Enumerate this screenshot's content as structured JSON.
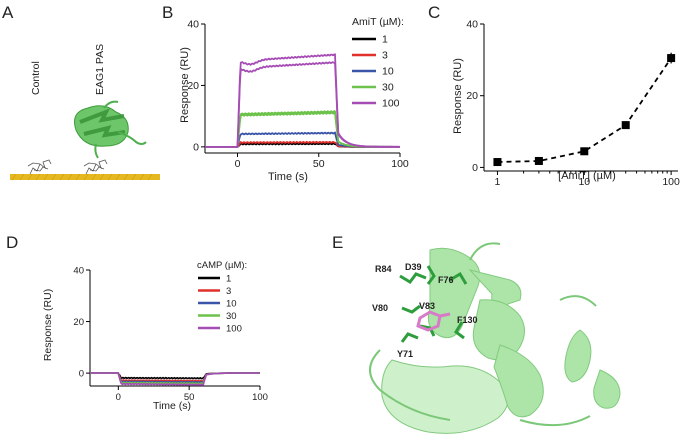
{
  "panels": {
    "A": {
      "letter": "A",
      "label_control": "Control",
      "label_protein": "EAG1 PAS"
    },
    "B": {
      "letter": "B"
    },
    "C": {
      "letter": "C"
    },
    "D": {
      "letter": "D"
    },
    "E": {
      "letter": "E",
      "residues": [
        "R84",
        "D39",
        "F76",
        "V80",
        "V83",
        "F130",
        "Y71"
      ]
    }
  },
  "colors": {
    "c1": "#000000",
    "c3": "#e0302c",
    "c10": "#3a55a8",
    "c30": "#6cc24a",
    "c100": "#a64db5",
    "gold": "#e6b820",
    "protein": "#8fd98a",
    "sidechain": "#2e9e3c",
    "ligand": "#d77ac8"
  },
  "chart_data": [
    {
      "id": "B",
      "type": "line",
      "xlabel": "Time (s)",
      "ylabel": "Response (RU)",
      "xlim": [
        -20,
        100
      ],
      "ylim": [
        -2,
        40
      ],
      "xticks": [
        0,
        50,
        100
      ],
      "yticks": [
        0,
        20,
        40
      ],
      "legend_title": "AmiT (µM):",
      "legend_position": "top-right",
      "series": [
        {
          "name": "1",
          "color": "#000000",
          "plateau": 1.0
        },
        {
          "name": "3",
          "color": "#e0302c",
          "plateau": 1.5
        },
        {
          "name": "10",
          "color": "#3a55a8",
          "plateau": 4.5
        },
        {
          "name": "30",
          "color": "#6cc24a",
          "plateau": 11.5
        },
        {
          "name": "30",
          "color": "#6cc24a",
          "plateau": 11.0
        },
        {
          "name": "100",
          "color": "#a64db5",
          "plateau": 30.0
        },
        {
          "name": "100",
          "color": "#a64db5",
          "plateau": 27.5
        }
      ],
      "legend": [
        {
          "label": "1",
          "color": "#000000"
        },
        {
          "label": "3",
          "color": "#e0302c"
        },
        {
          "label": "10",
          "color": "#3a55a8"
        },
        {
          "label": "30",
          "color": "#6cc24a"
        },
        {
          "label": "100",
          "color": "#a64db5"
        }
      ]
    },
    {
      "id": "C",
      "type": "scatter",
      "xlabel": "[AmiT] (µM)",
      "ylabel": "Response (RU)",
      "xscale": "log",
      "xlim": [
        0.7,
        120
      ],
      "ylim": [
        -1,
        40
      ],
      "xticks": [
        1,
        10,
        100
      ],
      "yticks": [
        0,
        20,
        40
      ],
      "x": [
        1,
        3,
        10,
        30,
        100
      ],
      "y": [
        1.5,
        1.8,
        4.5,
        11.8,
        30.5
      ],
      "fit": "dashed"
    },
    {
      "id": "D",
      "type": "line",
      "xlabel": "Time (s)",
      "ylabel": "Response (RU)",
      "xlim": [
        -20,
        100
      ],
      "ylim": [
        -5,
        40
      ],
      "xticks": [
        0,
        50,
        100
      ],
      "yticks": [
        0,
        20,
        40
      ],
      "legend_title": "cAMP (µM):",
      "legend_position": "top-right",
      "series": [
        {
          "name": "1",
          "color": "#000000",
          "plateau": -2.0
        },
        {
          "name": "3",
          "color": "#e0302c",
          "plateau": -3.0
        },
        {
          "name": "10",
          "color": "#3a55a8",
          "plateau": -3.5
        },
        {
          "name": "30",
          "color": "#6cc24a",
          "plateau": -4.0
        },
        {
          "name": "100",
          "color": "#a64db5",
          "plateau": -4.5
        }
      ],
      "legend": [
        {
          "label": "1",
          "color": "#000000"
        },
        {
          "label": "3",
          "color": "#e0302c"
        },
        {
          "label": "10",
          "color": "#3a55a8"
        },
        {
          "label": "30",
          "color": "#6cc24a"
        },
        {
          "label": "100",
          "color": "#a64db5"
        }
      ]
    }
  ]
}
